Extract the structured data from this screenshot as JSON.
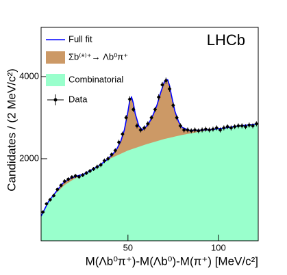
{
  "chart_data": {
    "type": "fit",
    "annotation": "LHCb",
    "x_label": "M(Λb⁰π⁺)-M(Λb⁰)-M(π⁺) [MeV/c²]",
    "y_label": "Candidates / (2 MeV/c²)",
    "xlim": [
      2,
      122
    ],
    "ylim": [
      0,
      5200
    ],
    "xticks": [
      50,
      100
    ],
    "yticks": [
      2000,
      4000
    ],
    "series": [
      {
        "name": "Full fit",
        "color": "#0000ff",
        "x": [
          2,
          6,
          10,
          14,
          18,
          22,
          26,
          30,
          34,
          38,
          42,
          44,
          46,
          48,
          50,
          51,
          52,
          53,
          54,
          56,
          58,
          60,
          62,
          64,
          66,
          68,
          70,
          71,
          72,
          73,
          74,
          76,
          78,
          80,
          84,
          88,
          92,
          96,
          100,
          104,
          108,
          112,
          116,
          122
        ],
        "values": [
          600,
          950,
          1180,
          1400,
          1520,
          1580,
          1630,
          1730,
          1830,
          1960,
          2130,
          2250,
          2420,
          2700,
          3150,
          3420,
          3500,
          3350,
          3100,
          2800,
          2700,
          2780,
          2900,
          3080,
          3300,
          3600,
          3860,
          3930,
          3920,
          3780,
          3550,
          3150,
          2900,
          2760,
          2690,
          2690,
          2700,
          2710,
          2730,
          2750,
          2780,
          2800,
          2820,
          2850
        ]
      },
      {
        "name": "Σb⁽*⁾⁺→ Λb⁰π⁺",
        "color": "#cc9966"
      },
      {
        "name": "Combinatorial",
        "color": "#99ffcc",
        "x": [
          2,
          6,
          10,
          15,
          20,
          25,
          30,
          35,
          40,
          50,
          60,
          70,
          80,
          90,
          100,
          110,
          122
        ],
        "values": [
          600,
          950,
          1150,
          1360,
          1500,
          1620,
          1750,
          1870,
          2000,
          2200,
          2350,
          2480,
          2580,
          2660,
          2730,
          2790,
          2850
        ]
      },
      {
        "name": "Data",
        "color": "#000000",
        "x": [
          3,
          5,
          7,
          9,
          11,
          13,
          15,
          17,
          19,
          21,
          23,
          25,
          27,
          29,
          31,
          33,
          35,
          37,
          39,
          41,
          43,
          45,
          47,
          49,
          51,
          53,
          55,
          57,
          59,
          61,
          63,
          65,
          67,
          69,
          71,
          73,
          75,
          77,
          79,
          81,
          83,
          85,
          87,
          89,
          91,
          93,
          95,
          97,
          99,
          101,
          103,
          105,
          107,
          109,
          111,
          113,
          115,
          117,
          119,
          121
        ],
        "values": [
          700,
          900,
          1000,
          1100,
          1250,
          1350,
          1450,
          1500,
          1550,
          1580,
          1560,
          1600,
          1650,
          1700,
          1750,
          1800,
          1850,
          1950,
          2000,
          2100,
          2200,
          2400,
          2600,
          3000,
          3450,
          3200,
          2800,
          2700,
          2750,
          2850,
          3000,
          3200,
          3500,
          3800,
          3900,
          3700,
          3300,
          3000,
          2800,
          2700,
          2700,
          2680,
          2700,
          2680,
          2700,
          2720,
          2700,
          2720,
          2750,
          2700,
          2750,
          2780,
          2750,
          2780,
          2800,
          2800,
          2780,
          2820,
          2800,
          2850
        ],
        "errors": [
          40,
          40,
          45,
          45,
          45,
          45,
          50,
          50,
          50,
          50,
          50,
          50,
          50,
          50,
          50,
          55,
          55,
          55,
          55,
          55,
          55,
          60,
          60,
          65,
          70,
          65,
          60,
          60,
          60,
          60,
          60,
          65,
          70,
          70,
          75,
          70,
          65,
          60,
          60,
          60,
          60,
          60,
          60,
          60,
          60,
          60,
          60,
          60,
          60,
          60,
          60,
          60,
          60,
          60,
          60,
          60,
          60,
          60,
          60,
          60
        ]
      }
    ]
  }
}
